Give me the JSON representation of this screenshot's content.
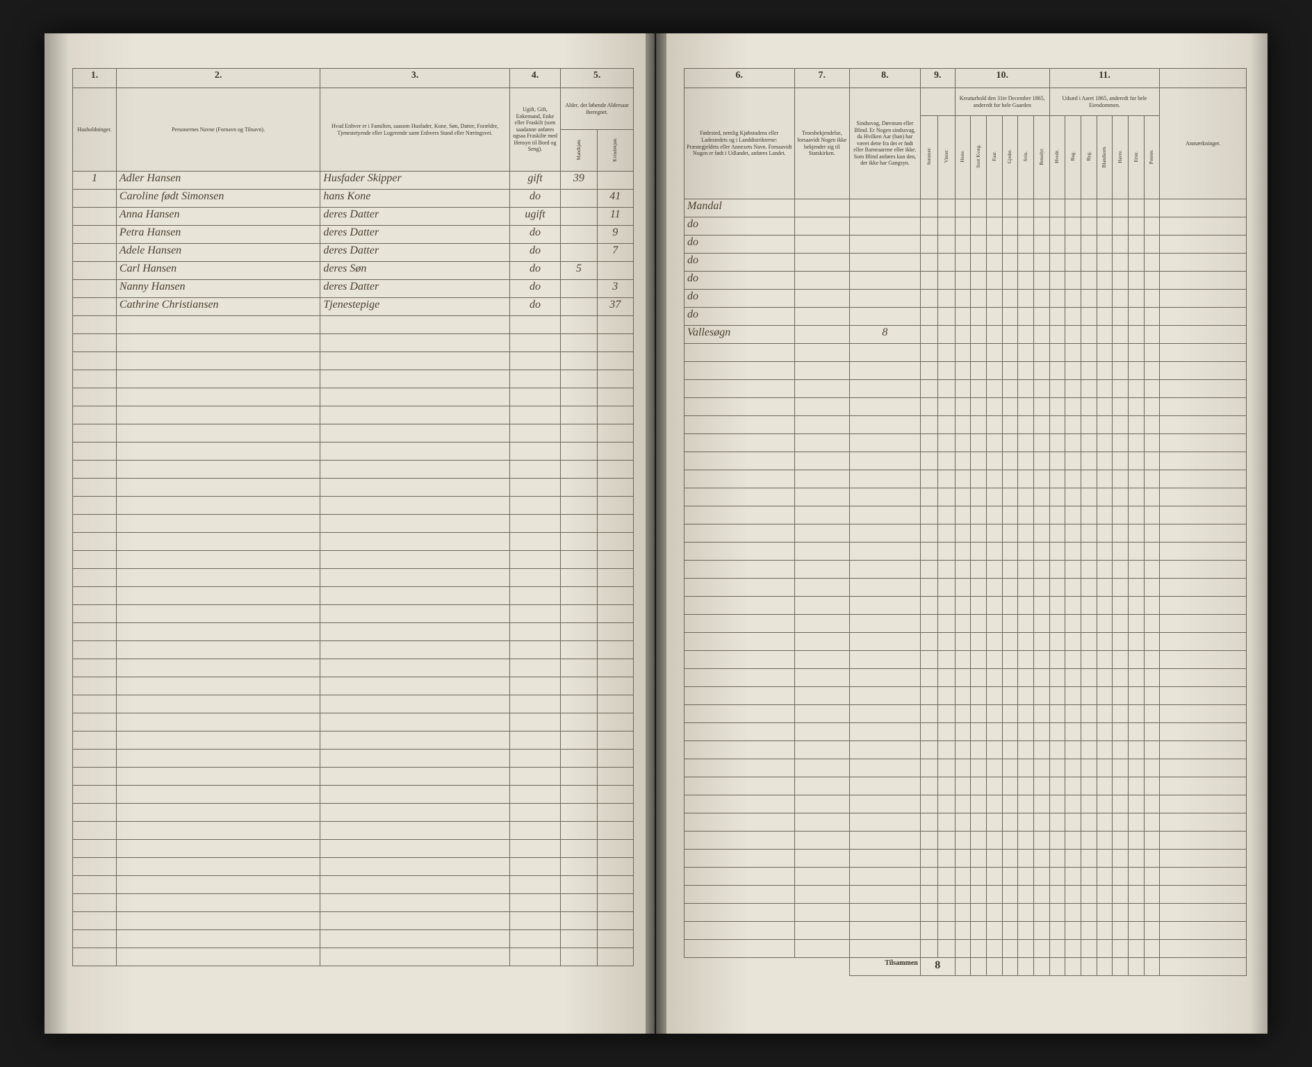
{
  "left": {
    "colNumbers": [
      "1.",
      "2.",
      "3.",
      "4.",
      "5."
    ],
    "headers": {
      "c1": "Husholdninger.",
      "c2": "Personernes Navne (Fornavn og Tilnavn).",
      "c3": "Hvad Enhver er i Familien, saasom Husfader, Kone, Søn, Datter, Forældre, Tjenestetyende eller Logerende samt Enhvers Stand eller Næringsvei.",
      "c4": "Ugift, Gift, Enkemand, Enke eller Fraskilt (som saadanne anføres ogsaa Fraskilte med Hensyn til Bord og Seng).",
      "c5": "Alder, det løbende Aldersaar iberegnet.",
      "c5a": "Mandkjøn.",
      "c5b": "Kvindekjøn."
    },
    "rows": [
      {
        "hh": "1",
        "name": "Adler Hansen",
        "rel": "Husfader Skipper",
        "status": "gift",
        "ageM": "39",
        "ageF": ""
      },
      {
        "hh": "",
        "name": "Caroline født Simonsen",
        "rel": "hans Kone",
        "status": "do",
        "ageM": "",
        "ageF": "41"
      },
      {
        "hh": "",
        "name": "Anna Hansen",
        "rel": "deres Datter",
        "status": "ugift",
        "ageM": "",
        "ageF": "11"
      },
      {
        "hh": "",
        "name": "Petra Hansen",
        "rel": "deres Datter",
        "status": "do",
        "ageM": "",
        "ageF": "9"
      },
      {
        "hh": "",
        "name": "Adele Hansen",
        "rel": "deres Datter",
        "status": "do",
        "ageM": "",
        "ageF": "7"
      },
      {
        "hh": "",
        "name": "Carl Hansen",
        "rel": "deres Søn",
        "status": "do",
        "ageM": "5",
        "ageF": ""
      },
      {
        "hh": "",
        "name": "Nanny Hansen",
        "rel": "deres Datter",
        "status": "do",
        "ageM": "",
        "ageF": "3"
      },
      {
        "hh": "",
        "name": "Cathrine Christiansen",
        "rel": "Tjenestepige",
        "status": "do",
        "ageM": "",
        "ageF": "37"
      }
    ],
    "emptyRows": 36
  },
  "right": {
    "colNumbers": [
      "6.",
      "7.",
      "8.",
      "9.",
      "10.",
      "11.",
      ""
    ],
    "headers": {
      "c6": "Fødested, nemlig Kjøbstadens eller Ladestedets og i Landdistrikterne: Præstegjeldets eller Annexets Navn. Forsaavidt Nogen er født i Udlandet, anføres Landet.",
      "c7": "Troesbekjendelse, forsaavidt Nogen ikke bekjender sig til Statskirken.",
      "c8": "Sindssvag, Døvstum eller Blind. Er Nogen sindssvag, da Hvilken Aar (han) har været dette fra det er født eller Barneaarene eller ikke. Som Blind anføres kun den, der ikke har Gangsyn.",
      "c9a": "Sommer:",
      "c9b": "Vinter:",
      "c10": "Kreaturhold den 31te December 1865, anderedt for hele Gaarden",
      "c10sub": [
        "Heste.",
        "Stort Kvæg.",
        "Faar.",
        "Gjeder.",
        "Svin.",
        "Rensdyr."
      ],
      "c11": "Udsæd i Aaret 1865, anderedt for hele Eiendommen.",
      "c11sub": [
        "Hvede.",
        "Rug.",
        "Byg.",
        "Blandkorn.",
        "Havre.",
        "Erter.",
        "Poteter."
      ],
      "c12": "Anmærkninger."
    },
    "rows": [
      {
        "birthplace": "Mandal",
        "creed": "",
        "cond": "",
        "c9": ""
      },
      {
        "birthplace": "do",
        "creed": "",
        "cond": "",
        "c9": ""
      },
      {
        "birthplace": "do",
        "creed": "",
        "cond": "",
        "c9": ""
      },
      {
        "birthplace": "do",
        "creed": "",
        "cond": "",
        "c9": ""
      },
      {
        "birthplace": "do",
        "creed": "",
        "cond": "",
        "c9": ""
      },
      {
        "birthplace": "do",
        "creed": "",
        "cond": "",
        "c9": ""
      },
      {
        "birthplace": "do",
        "creed": "",
        "cond": "",
        "c9": ""
      },
      {
        "birthplace": "Vallesøgn",
        "creed": "",
        "cond": "8",
        "c9": ""
      }
    ],
    "emptyRows": 34,
    "footer": {
      "label": "Tilsammen",
      "value": "8"
    }
  }
}
